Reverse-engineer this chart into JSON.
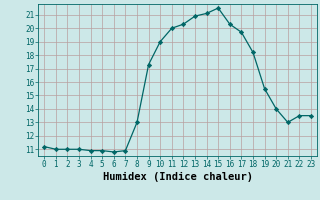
{
  "x": [
    0,
    1,
    2,
    3,
    4,
    5,
    6,
    7,
    8,
    9,
    10,
    11,
    12,
    13,
    14,
    15,
    16,
    17,
    18,
    19,
    20,
    21,
    22,
    23
  ],
  "y": [
    11.2,
    11.0,
    11.0,
    11.0,
    10.9,
    10.9,
    10.8,
    10.9,
    13.0,
    17.3,
    19.0,
    20.0,
    20.3,
    20.9,
    21.1,
    21.5,
    20.3,
    19.7,
    18.2,
    15.5,
    14.0,
    13.0,
    13.5,
    13.5
  ],
  "line_color": "#006666",
  "marker": "D",
  "marker_size": 2.2,
  "bg_color": "#cce8e8",
  "grid_color": "#b8a0a0",
  "xlabel": "Humidex (Indice chaleur)",
  "xlim": [
    -0.5,
    23.5
  ],
  "ylim": [
    10.5,
    21.8
  ],
  "yticks": [
    11,
    12,
    13,
    14,
    15,
    16,
    17,
    18,
    19,
    20,
    21
  ],
  "xticks": [
    0,
    1,
    2,
    3,
    4,
    5,
    6,
    7,
    8,
    9,
    10,
    11,
    12,
    13,
    14,
    15,
    16,
    17,
    18,
    19,
    20,
    21,
    22,
    23
  ],
  "tick_fontsize": 5.5,
  "label_fontsize": 7.5
}
